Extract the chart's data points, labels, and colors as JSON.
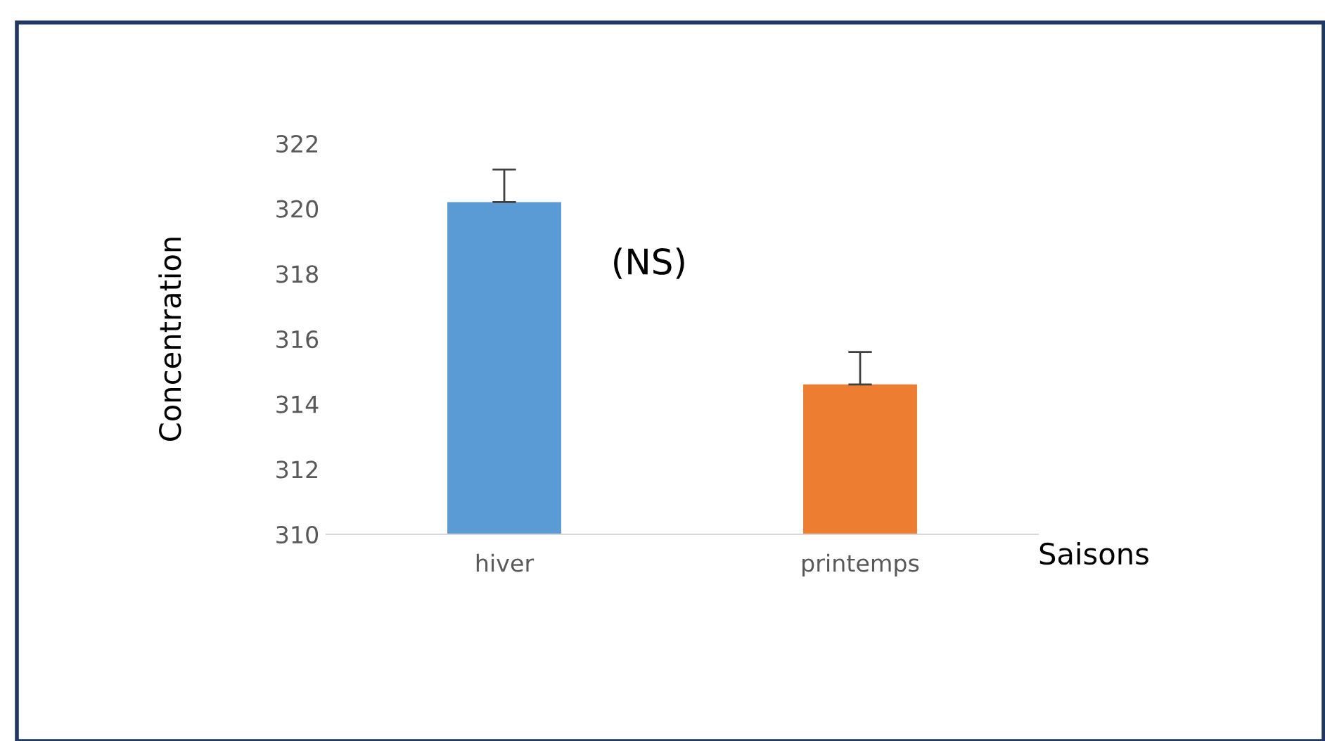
{
  "chart_data": {
    "type": "bar",
    "xlabel": "Saisons",
    "ylabel": "Concentration",
    "categories": [
      "hiver",
      "printemps"
    ],
    "values": [
      320.2,
      314.6
    ],
    "colors": [
      "#5b9bd5",
      "#ed7d31"
    ],
    "errors": [
      [
        320.2,
        321.2
      ],
      [
        314.6,
        315.6
      ]
    ],
    "ylim": [
      310,
      322
    ],
    "yticks": [
      310,
      312,
      314,
      316,
      318,
      320,
      322
    ],
    "annotations": [
      "(NS)"
    ],
    "grid": false,
    "legend": false
  }
}
